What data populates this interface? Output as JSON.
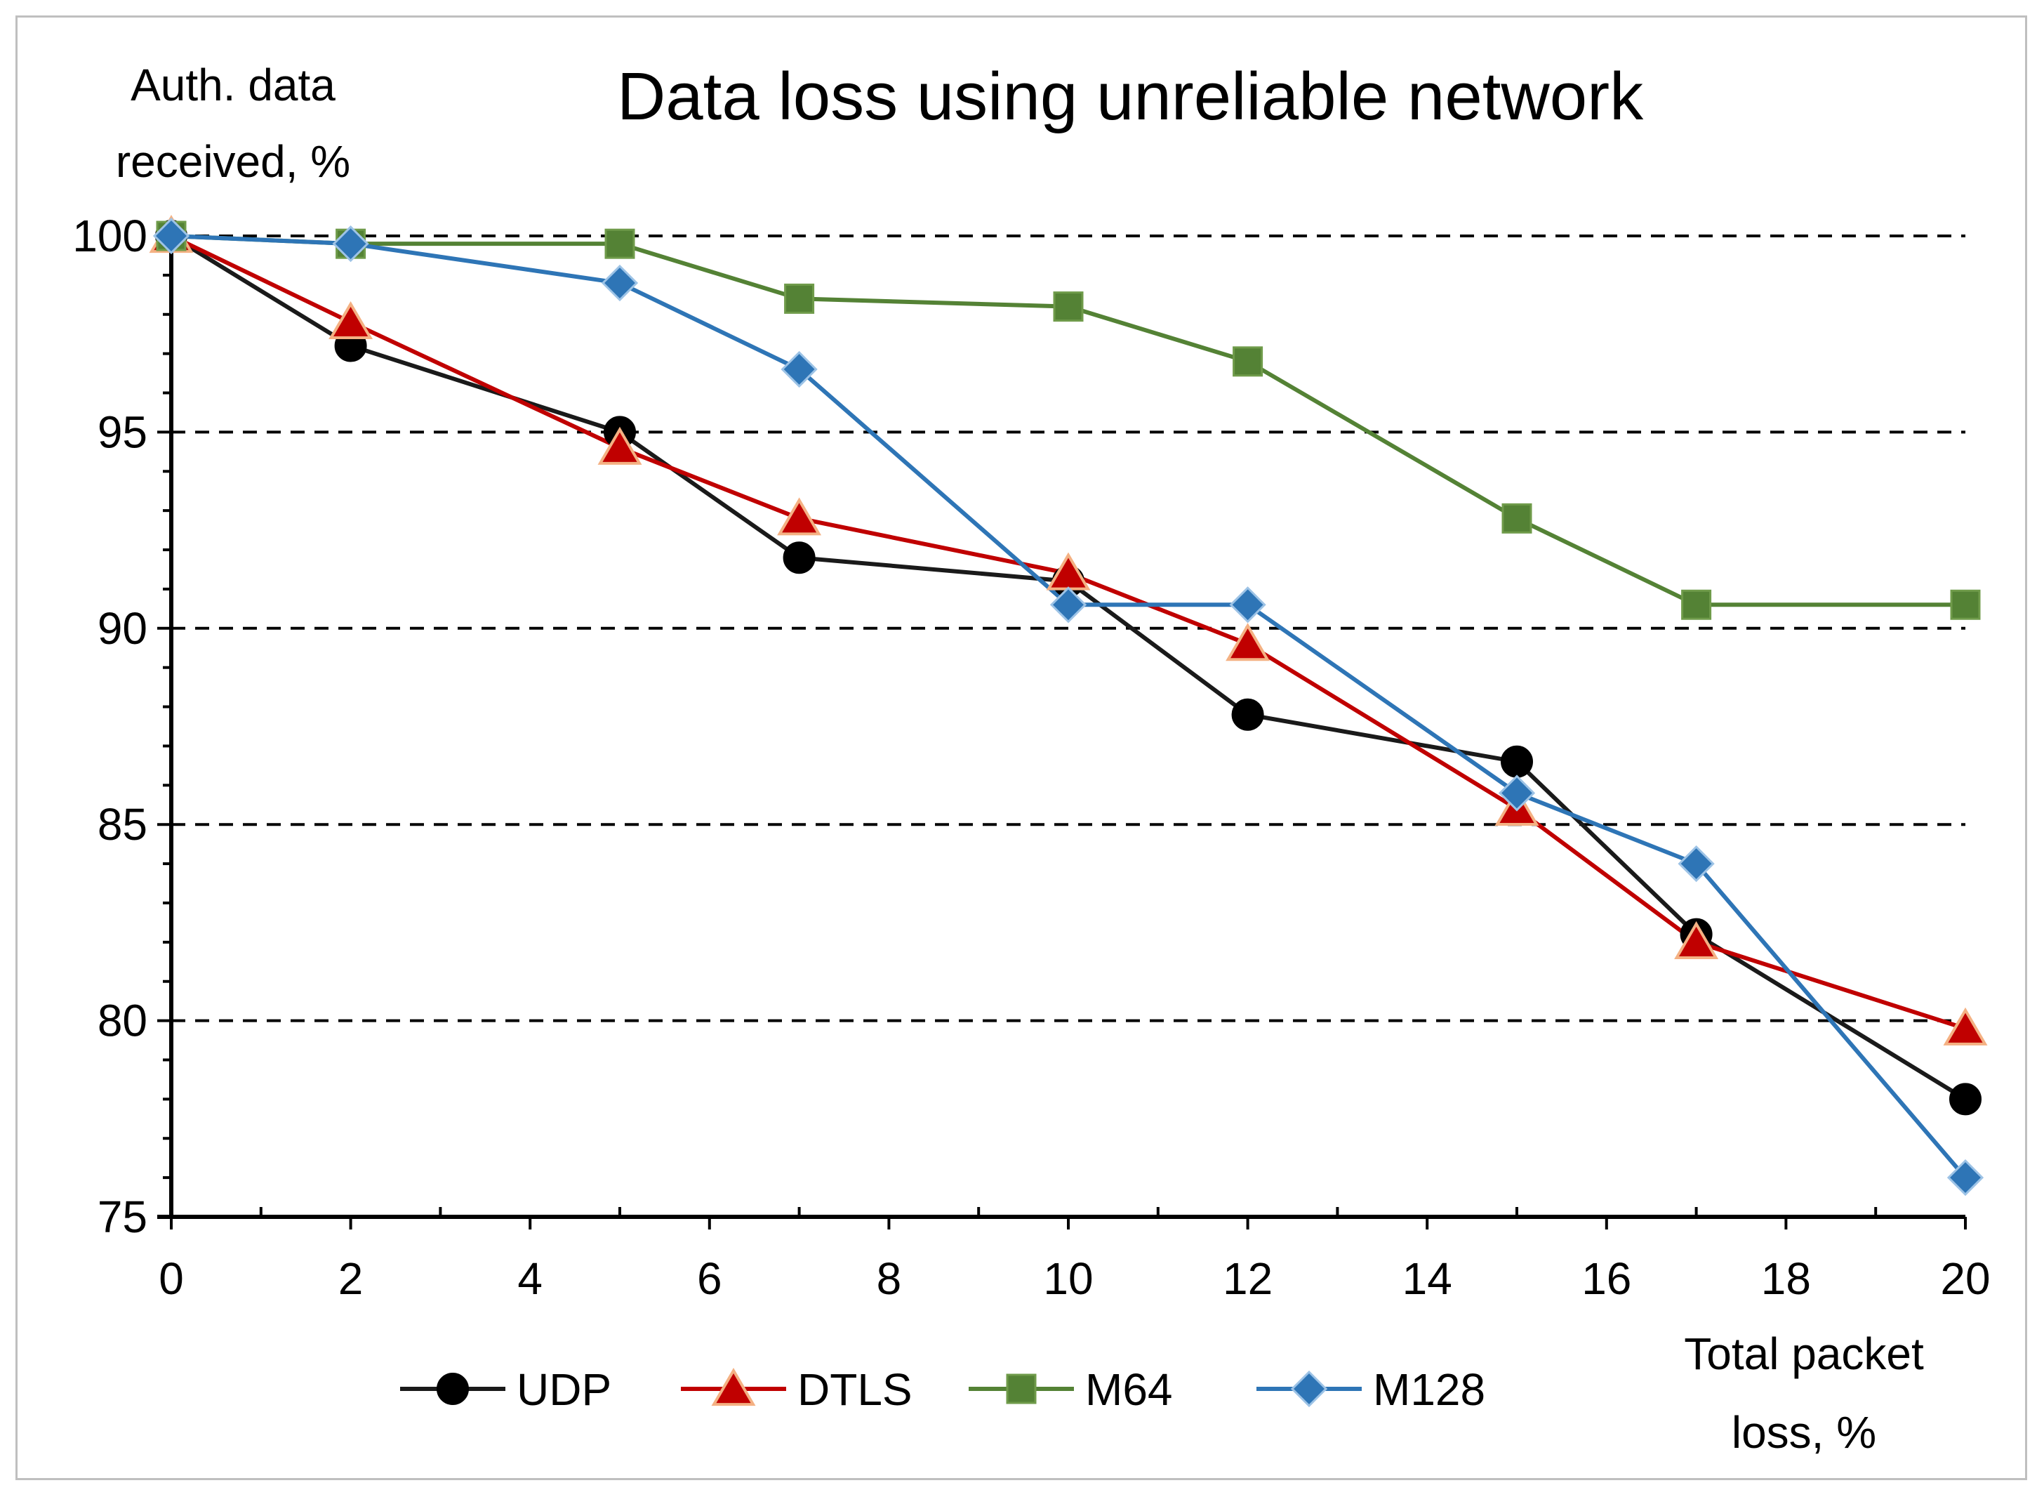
{
  "chart_data": {
    "type": "line",
    "title": "Data loss using unreliable network",
    "ylabel_lines": [
      "Auth. data",
      "received, %"
    ],
    "xlabel_lines": [
      "Total packet",
      "loss, %"
    ],
    "xlim": [
      0,
      20
    ],
    "ylim": [
      75,
      100
    ],
    "xticks": [
      0,
      2,
      4,
      6,
      8,
      10,
      12,
      14,
      16,
      18,
      20
    ],
    "yticks": [
      75,
      80,
      85,
      90,
      95,
      100
    ],
    "xtick_labels": [
      "0",
      "2",
      "4",
      "6",
      "8",
      "10",
      "12",
      "14",
      "16",
      "18",
      "20"
    ],
    "ytick_labels": [
      "75",
      "80",
      "85",
      "90",
      "95",
      "100"
    ],
    "grid": "horizontal dashed",
    "legend_position": "bottom",
    "series": [
      {
        "name": "UDP",
        "color": "#1a1a1a",
        "marker": "circle",
        "x": [
          0,
          2,
          5,
          7,
          10,
          12,
          15,
          17,
          20
        ],
        "y": [
          100,
          97.2,
          95.0,
          91.8,
          91.2,
          87.8,
          86.6,
          82.2,
          78.0
        ]
      },
      {
        "name": "DTLS",
        "color": "#c00000",
        "marker": "triangle",
        "x": [
          0,
          2,
          5,
          7,
          10,
          12,
          15,
          17,
          20
        ],
        "y": [
          100,
          97.8,
          94.6,
          92.8,
          91.4,
          89.6,
          85.4,
          82.0,
          79.8
        ]
      },
      {
        "name": "M64",
        "color": "#548235",
        "marker": "square",
        "x": [
          0,
          2,
          5,
          7,
          10,
          12,
          15,
          17,
          20
        ],
        "y": [
          100,
          99.8,
          99.8,
          98.4,
          98.2,
          96.8,
          92.8,
          90.6,
          90.6
        ]
      },
      {
        "name": "M128",
        "color": "#2e75b6",
        "marker": "diamond",
        "x": [
          0,
          2,
          5,
          7,
          10,
          12,
          15,
          17,
          20
        ],
        "y": [
          100,
          99.8,
          98.8,
          96.6,
          90.6,
          90.6,
          85.8,
          84.0,
          76.0
        ]
      }
    ]
  }
}
